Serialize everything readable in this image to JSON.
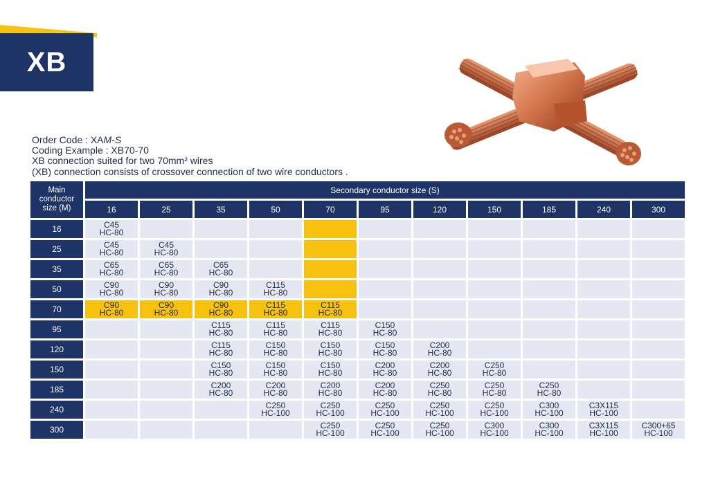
{
  "header": {
    "badge": "XB"
  },
  "info": {
    "order_label": "Order Code : ",
    "order_prefix": "XA",
    "order_italic": "M-S",
    "coding_example": "Coding Example : XB70-70",
    "line3": "XB connection suited for two 70mm² wires",
    "line4": "(XB) connection consists of crossover connection of two wire conductors ."
  },
  "table": {
    "main_header": [
      "Main",
      "conductor",
      "size (M)"
    ],
    "secondary_header": "Secondary conductor size (S)",
    "columns": [
      "16",
      "25",
      "35",
      "50",
      "70",
      "95",
      "120",
      "150",
      "185",
      "240",
      "300"
    ],
    "rows": [
      {
        "label": "16",
        "cells": [
          [
            "C45",
            "HC-80"
          ],
          [],
          [],
          [],
          [],
          [],
          [],
          [],
          [],
          [],
          []
        ]
      },
      {
        "label": "25",
        "cells": [
          [
            "C45",
            "HC-80"
          ],
          [
            "C45",
            "HC-80"
          ],
          [],
          [],
          [],
          [],
          [],
          [],
          [],
          [],
          []
        ]
      },
      {
        "label": "35",
        "cells": [
          [
            "C65",
            "HC-80"
          ],
          [
            "C65",
            "HC-80"
          ],
          [
            "C65",
            "HC-80"
          ],
          [],
          [],
          [],
          [],
          [],
          [],
          [],
          []
        ]
      },
      {
        "label": "50",
        "cells": [
          [
            "C90",
            "HC-80"
          ],
          [
            "C90",
            "HC-80"
          ],
          [
            "C90",
            "HC-80"
          ],
          [
            "C115",
            "HC-80"
          ],
          [],
          [],
          [],
          [],
          [],
          [],
          []
        ]
      },
      {
        "label": "70",
        "cells": [
          [
            "C90",
            "HC-80"
          ],
          [
            "C90",
            "HC-80"
          ],
          [
            "C90",
            "HC-80"
          ],
          [
            "C115",
            "HC-80"
          ],
          [
            "C115",
            "HC-80"
          ],
          [],
          [],
          [],
          [],
          [],
          []
        ]
      },
      {
        "label": "95",
        "cells": [
          [],
          [],
          [
            "C115",
            "HC-80"
          ],
          [
            "C115",
            "HC-80"
          ],
          [
            "C115",
            "HC-80"
          ],
          [
            "C150",
            "HC-80"
          ],
          [],
          [],
          [],
          [],
          []
        ]
      },
      {
        "label": "120",
        "cells": [
          [],
          [],
          [
            "C115",
            "HC-80"
          ],
          [
            "C150",
            "HC-80"
          ],
          [
            "C150",
            "HC-80"
          ],
          [
            "C150",
            "HC-80"
          ],
          [
            "C200",
            "HC-80"
          ],
          [],
          [],
          [],
          []
        ]
      },
      {
        "label": "150",
        "cells": [
          [],
          [],
          [
            "C150",
            "HC-80"
          ],
          [
            "C150",
            "HC-80"
          ],
          [
            "C150",
            "HC-80"
          ],
          [
            "C200",
            "HC-80"
          ],
          [
            "C200",
            "HC-80"
          ],
          [
            "C250",
            "HC-80"
          ],
          [],
          [],
          []
        ]
      },
      {
        "label": "185",
        "cells": [
          [],
          [],
          [
            "C200",
            "HC-80"
          ],
          [
            "C200",
            "HC-80"
          ],
          [
            "C200",
            "HC-80"
          ],
          [
            "C200",
            "HC-80"
          ],
          [
            "C250",
            "HC-80"
          ],
          [
            "C250",
            "HC-80"
          ],
          [
            "C250",
            "HC-80"
          ],
          [],
          []
        ]
      },
      {
        "label": "240",
        "cells": [
          [],
          [],
          [],
          [
            "C250",
            "HC-100"
          ],
          [
            "C250",
            "HC-100"
          ],
          [
            "C250",
            "HC-100"
          ],
          [
            "C250",
            "HC-100"
          ],
          [
            "C250",
            "HC-100"
          ],
          [
            "C300",
            "HC-100"
          ],
          [
            "C3X115",
            "HC-100"
          ],
          []
        ]
      },
      {
        "label": "300",
        "cells": [
          [],
          [],
          [],
          [],
          [
            "C250",
            "HC-100"
          ],
          [
            "C250",
            "HC-100"
          ],
          [
            "C250",
            "HC-100"
          ],
          [
            "C300",
            "HC-100"
          ],
          [
            "C300",
            "HC-100"
          ],
          [
            "C3X115",
            "HC-100"
          ],
          [
            "C300+65",
            "HC-100"
          ]
        ]
      }
    ],
    "highlight_row": "70",
    "highlight_column": "70"
  },
  "colors": {
    "navy": "#1e3366",
    "highlight": "#f6c20f",
    "cell": "#e5e8f3",
    "accent": "#f6c20f",
    "copper": "#c8623a"
  }
}
